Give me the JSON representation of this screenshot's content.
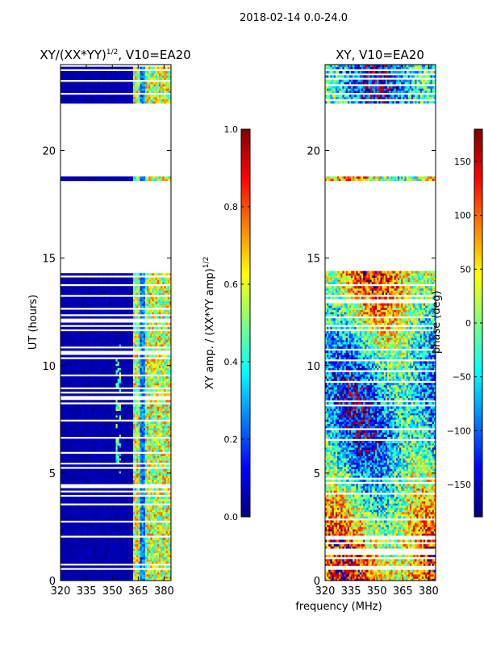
{
  "figure": {
    "suptitle": "2018-02-14 0.0-24.0"
  },
  "colors": {
    "jet": [
      "#00007f",
      "#0000ff",
      "#007fff",
      "#00ffff",
      "#7fff7f",
      "#ffff00",
      "#ff7f00",
      "#ff0000",
      "#7f0000"
    ],
    "axis": "#000000",
    "background": "#ffffff"
  },
  "chart_data": [
    {
      "type": "heatmap",
      "title": "XY/(XX*YY)^1/2, V10=EA20",
      "title_main": "XY/(XX*YY)",
      "title_exp": "1/2",
      "title_tail": ", V10=EA20",
      "xlabel": "",
      "ylabel": "UT (hours)",
      "xlim": [
        320,
        384
      ],
      "ylim": [
        0,
        24
      ],
      "xticks": [
        320,
        335,
        350,
        365,
        380
      ],
      "yticks": [
        0,
        5,
        10,
        15,
        20
      ],
      "ytick_labels": [
        "0",
        "5",
        "10",
        "15",
        "20"
      ],
      "data_gaps_hours": [
        [
          14.4,
          18.6
        ],
        [
          18.8,
          22.2
        ]
      ],
      "value_range": [
        0.0,
        1.0
      ],
      "colorbar": {
        "label": "XY amp. / (XX*YY amp)^1/2",
        "label_main": "XY amp. / (XX*YY amp)",
        "label_exp": "1/2",
        "range": [
          0.0,
          1.0
        ],
        "ticks": [
          "0.0",
          "0.2",
          "0.4",
          "0.6",
          "0.8",
          "1.0"
        ],
        "tick_values": [
          0.0,
          0.2,
          0.4,
          0.6,
          0.8,
          1.0
        ]
      }
    },
    {
      "type": "heatmap",
      "title": "XY, V10=EA20",
      "xlabel": "frequency (MHz)",
      "ylabel": "",
      "xlim": [
        320,
        384
      ],
      "ylim": [
        0,
        24
      ],
      "xticks": [
        320,
        335,
        350,
        365,
        380
      ],
      "yticks": [
        0,
        5,
        10,
        15,
        20
      ],
      "ytick_labels": [
        "0",
        "5",
        "10",
        "15",
        "20"
      ],
      "data_gaps_hours": [
        [
          14.4,
          18.6
        ],
        [
          18.8,
          22.2
        ]
      ],
      "value_range": [
        -180,
        180
      ],
      "colorbar": {
        "label": "phase (deg)",
        "range": [
          -180,
          180
        ],
        "ticks": [
          "−150",
          "−100",
          "−50",
          "0",
          "50",
          "100",
          "150"
        ],
        "tick_values": [
          -150,
          -100,
          -50,
          0,
          50,
          100,
          150
        ]
      }
    }
  ]
}
